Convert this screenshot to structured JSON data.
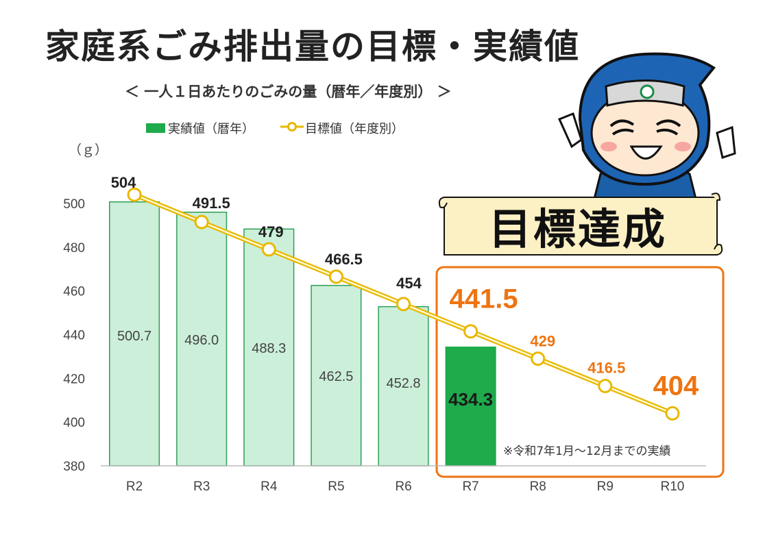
{
  "title": "家庭系ごみ排出量の目標・実績値",
  "subtitle": "＜ 一人１日あたりのごみの量（暦年／年度別） ＞",
  "legend": {
    "actual": "実績値（暦年）",
    "target": "目標値（年度別）"
  },
  "unit": "（ｇ）",
  "badge": "目標達成",
  "note": "※令和7年1月～12月までの実績",
  "colors": {
    "bar_fill": "#ccefd9",
    "bar_stroke": "#2e9e55",
    "bar_highlight": "#1faa4b",
    "line": "#e8b800",
    "target_future": "#ee7411",
    "box": "#ee7411",
    "badge_fill": "#fcf1c4"
  },
  "chart_data": {
    "type": "bar",
    "categories": [
      "R2",
      "R3",
      "R4",
      "R5",
      "R6",
      "R7",
      "R8",
      "R9",
      "R10"
    ],
    "ylim": [
      380,
      500
    ],
    "yticks": [
      380,
      400,
      420,
      440,
      460,
      480,
      500
    ],
    "ylabel": "（ｇ）",
    "series": [
      {
        "name": "実績値（暦年）",
        "kind": "bar",
        "values": [
          500.7,
          496.0,
          488.3,
          462.5,
          452.8,
          434.3,
          null,
          null,
          null
        ],
        "labels": [
          "500.7",
          "496.0",
          "488.3",
          "462.5",
          "452.8",
          "434.3",
          null,
          null,
          null
        ]
      },
      {
        "name": "目標値（年度別）",
        "kind": "line",
        "values": [
          504,
          491.5,
          479,
          466.5,
          454,
          441.5,
          429,
          416.5,
          404
        ],
        "labels": [
          "504",
          "491.5",
          "479",
          "466.5",
          "454",
          "441.5",
          "429",
          "416.5",
          "404"
        ]
      }
    ]
  }
}
